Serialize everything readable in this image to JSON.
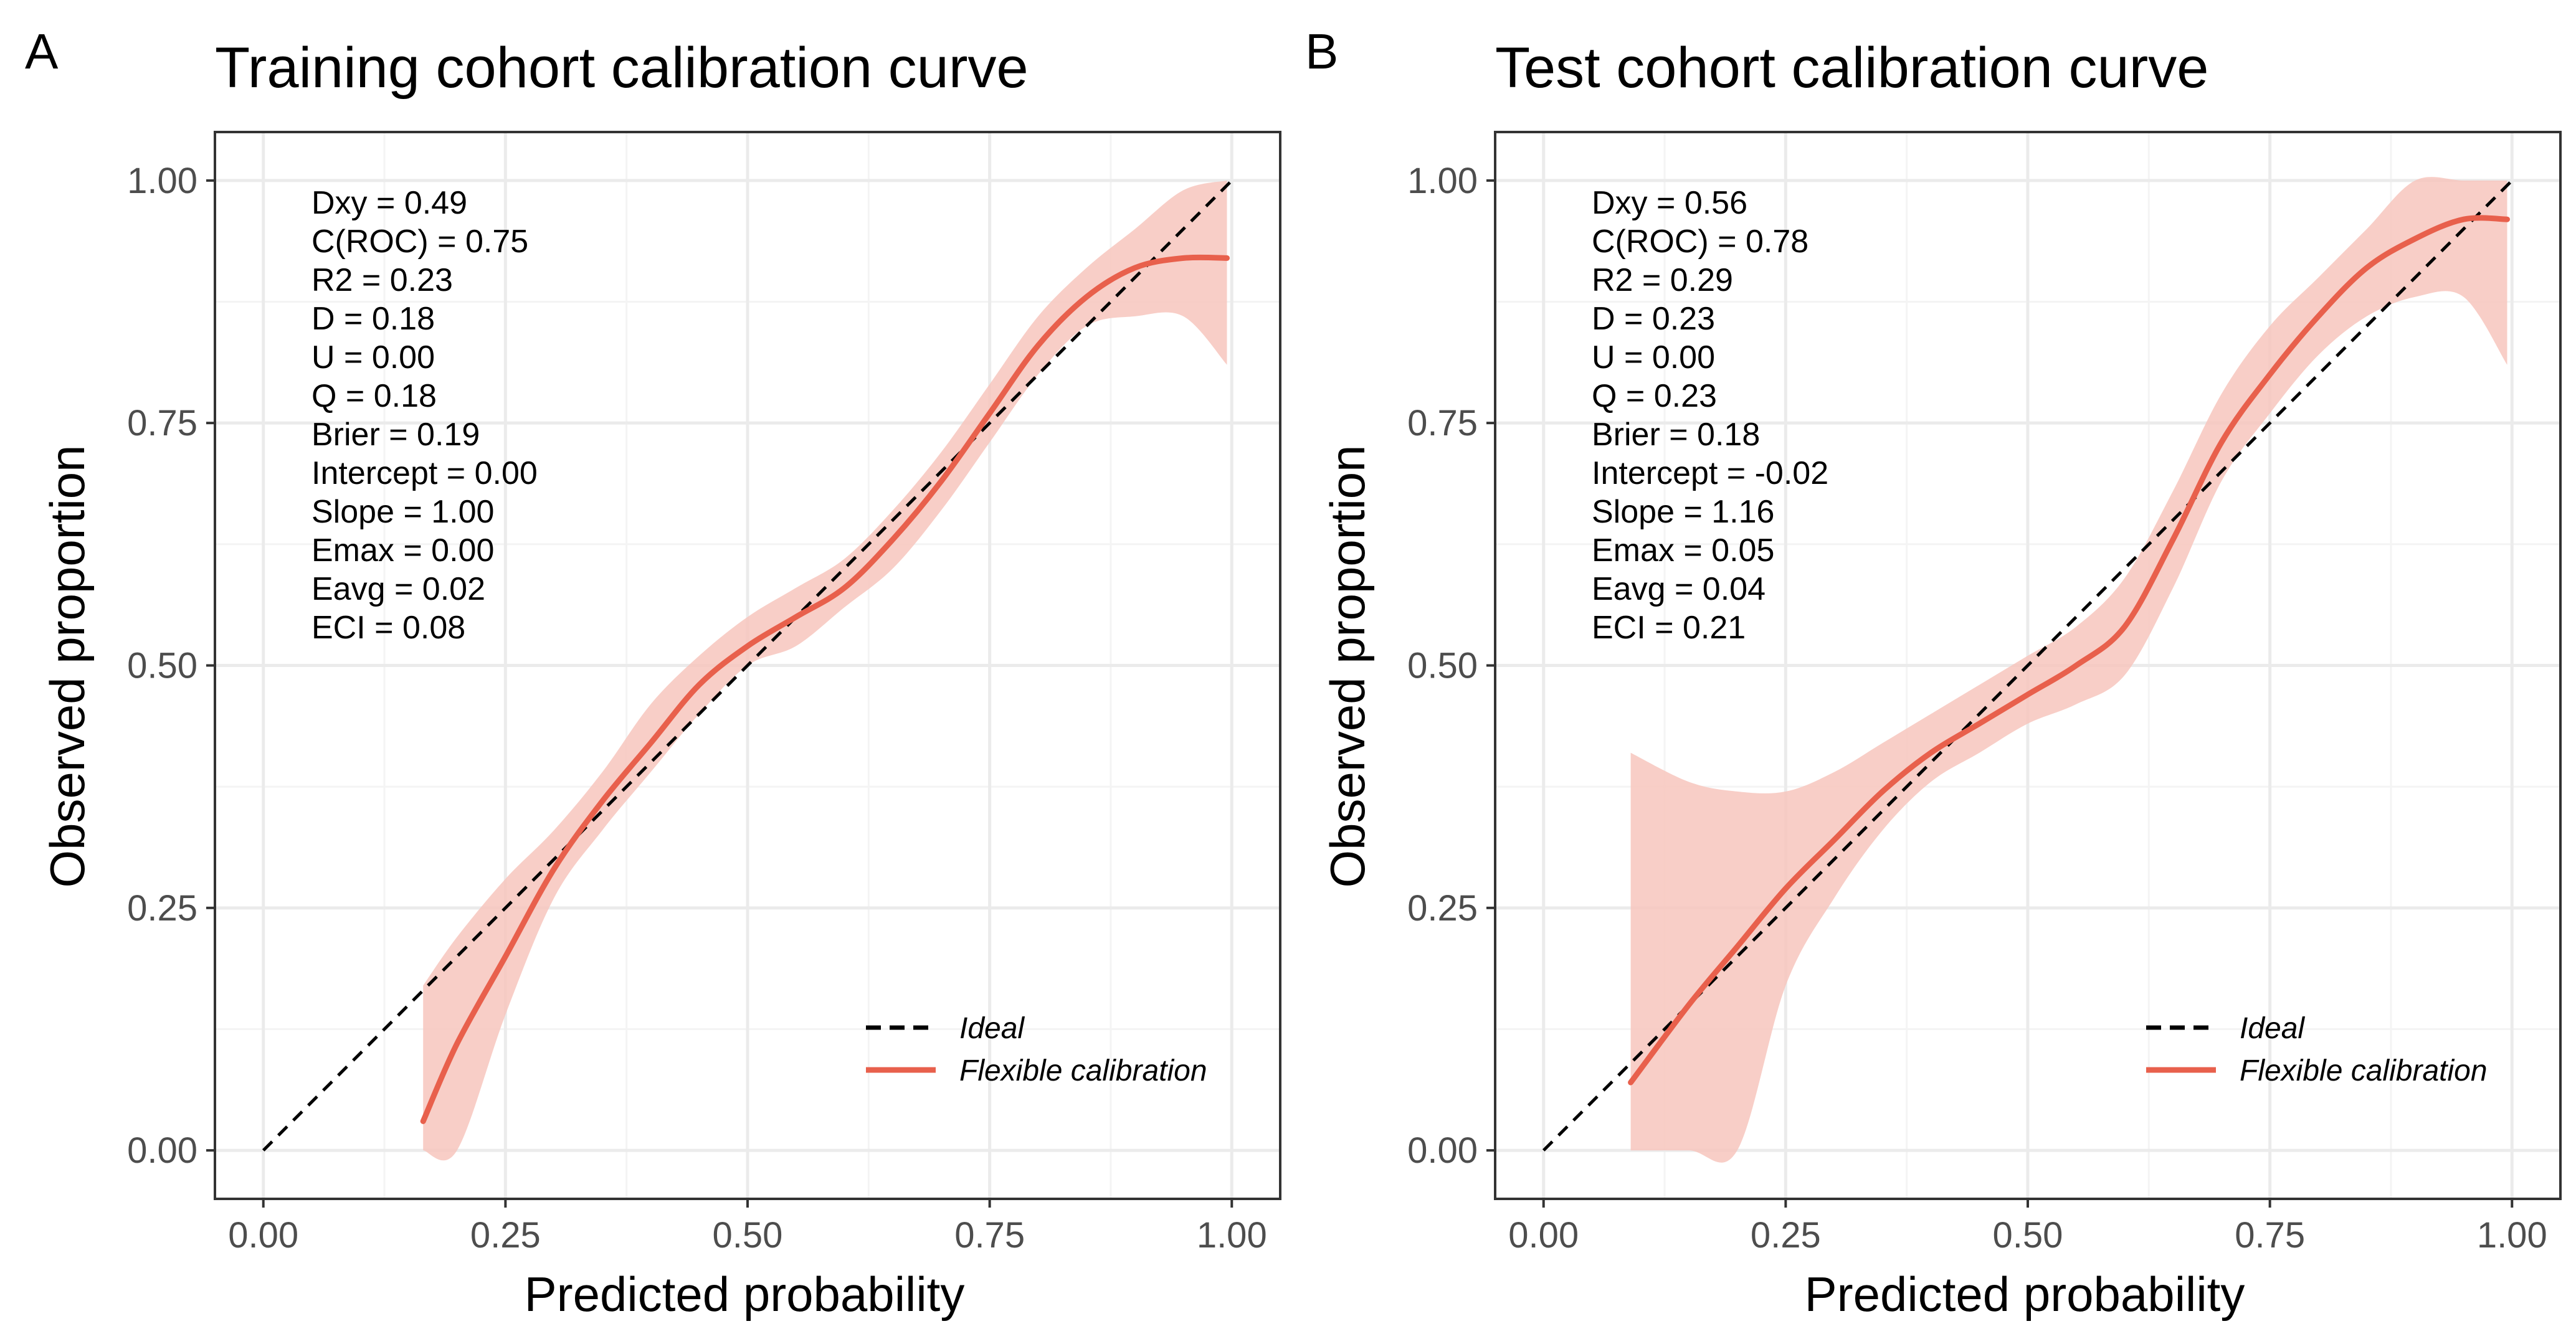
{
  "colors": {
    "curve": "#e8604c",
    "band": "#f7c5bd",
    "ideal": "#000000",
    "grid_major": "#ebebeb",
    "grid_minor": "#f4f4f4",
    "panel_border": "#333333"
  },
  "chart_data": [
    {
      "panel_letter": "A",
      "type": "line",
      "title": "Training cohort calibration curve",
      "xlabel": "Predicted probability",
      "ylabel": "Observed proportion",
      "xlim": [
        -0.05,
        1.05
      ],
      "ylim": [
        -0.05,
        1.05
      ],
      "x_ticks": [
        0.0,
        0.25,
        0.5,
        0.75,
        1.0
      ],
      "x_tick_labels": [
        "0.00",
        "0.25",
        "0.50",
        "0.75",
        "1.00"
      ],
      "y_ticks": [
        0.0,
        0.25,
        0.5,
        0.75,
        1.0
      ],
      "y_tick_labels": [
        "0.00",
        "0.25",
        "0.50",
        "0.75",
        "1.00"
      ],
      "legend_position": "bottom-right",
      "legend": [
        "Ideal",
        "Flexible calibration"
      ],
      "stats": [
        "Dxy = 0.49",
        "C(ROC) = 0.75",
        "R2 = 0.23",
        "D = 0.18",
        "U = 0.00",
        "Q = 0.18",
        "Brier = 0.19",
        "Intercept = 0.00",
        "Slope = 1.00",
        "Emax = 0.00",
        "Eavg = 0.02",
        "ECI = 0.08"
      ],
      "series": [
        {
          "name": "Ideal",
          "style": "dashed",
          "x": [
            0.0,
            1.0
          ],
          "y": [
            0.0,
            1.0
          ]
        },
        {
          "name": "Flexible calibration",
          "style": "solid",
          "x": [
            0.165,
            0.2,
            0.25,
            0.3,
            0.35,
            0.4,
            0.45,
            0.5,
            0.55,
            0.6,
            0.65,
            0.7,
            0.75,
            0.8,
            0.85,
            0.9,
            0.95,
            0.995
          ],
          "y": [
            0.03,
            0.11,
            0.2,
            0.29,
            0.36,
            0.42,
            0.48,
            0.52,
            0.55,
            0.58,
            0.63,
            0.69,
            0.76,
            0.83,
            0.88,
            0.91,
            0.92,
            0.92
          ],
          "lower": [
            0.0,
            0.0,
            0.14,
            0.26,
            0.33,
            0.39,
            0.45,
            0.5,
            0.52,
            0.56,
            0.6,
            0.66,
            0.73,
            0.8,
            0.85,
            0.86,
            0.86,
            0.81
          ],
          "upper": [
            0.17,
            0.22,
            0.28,
            0.33,
            0.39,
            0.46,
            0.51,
            0.55,
            0.58,
            0.61,
            0.66,
            0.72,
            0.79,
            0.86,
            0.91,
            0.95,
            0.99,
            1.0
          ]
        }
      ]
    },
    {
      "panel_letter": "B",
      "type": "line",
      "title": "Test cohort calibration curve",
      "xlabel": "Predicted probability",
      "ylabel": "Observed proportion",
      "xlim": [
        -0.05,
        1.05
      ],
      "ylim": [
        -0.05,
        1.05
      ],
      "x_ticks": [
        0.0,
        0.25,
        0.5,
        0.75,
        1.0
      ],
      "x_tick_labels": [
        "0.00",
        "0.25",
        "0.50",
        "0.75",
        "1.00"
      ],
      "y_ticks": [
        0.0,
        0.25,
        0.5,
        0.75,
        1.0
      ],
      "y_tick_labels": [
        "0.00",
        "0.25",
        "0.50",
        "0.75",
        "1.00"
      ],
      "legend_position": "bottom-right",
      "legend": [
        "Ideal",
        "Flexible calibration"
      ],
      "stats": [
        "Dxy = 0.56",
        "C(ROC) = 0.78",
        "R2 = 0.29",
        "D = 0.23",
        "U = 0.00",
        "Q = 0.23",
        "Brier = 0.18",
        "Intercept = -0.02",
        "Slope = 1.16",
        "Emax = 0.05",
        "Eavg = 0.04",
        "ECI = 0.21"
      ],
      "series": [
        {
          "name": "Ideal",
          "style": "dashed",
          "x": [
            0.0,
            1.0
          ],
          "y": [
            0.0,
            1.0
          ]
        },
        {
          "name": "Flexible calibration",
          "style": "solid",
          "x": [
            0.09,
            0.15,
            0.2,
            0.25,
            0.3,
            0.35,
            0.4,
            0.45,
            0.5,
            0.55,
            0.6,
            0.65,
            0.7,
            0.75,
            0.8,
            0.85,
            0.9,
            0.95,
            0.995
          ],
          "y": [
            0.07,
            0.15,
            0.21,
            0.27,
            0.32,
            0.37,
            0.41,
            0.44,
            0.47,
            0.5,
            0.54,
            0.63,
            0.73,
            0.8,
            0.86,
            0.91,
            0.94,
            0.96,
            0.96
          ],
          "lower": [
            0.0,
            0.0,
            0.0,
            0.17,
            0.26,
            0.33,
            0.38,
            0.41,
            0.44,
            0.46,
            0.49,
            0.58,
            0.69,
            0.76,
            0.82,
            0.86,
            0.88,
            0.88,
            0.81
          ],
          "upper": [
            0.41,
            0.38,
            0.37,
            0.37,
            0.39,
            0.42,
            0.45,
            0.48,
            0.51,
            0.54,
            0.59,
            0.68,
            0.78,
            0.85,
            0.9,
            0.95,
            1.0,
            1.0,
            1.0
          ]
        }
      ]
    }
  ]
}
